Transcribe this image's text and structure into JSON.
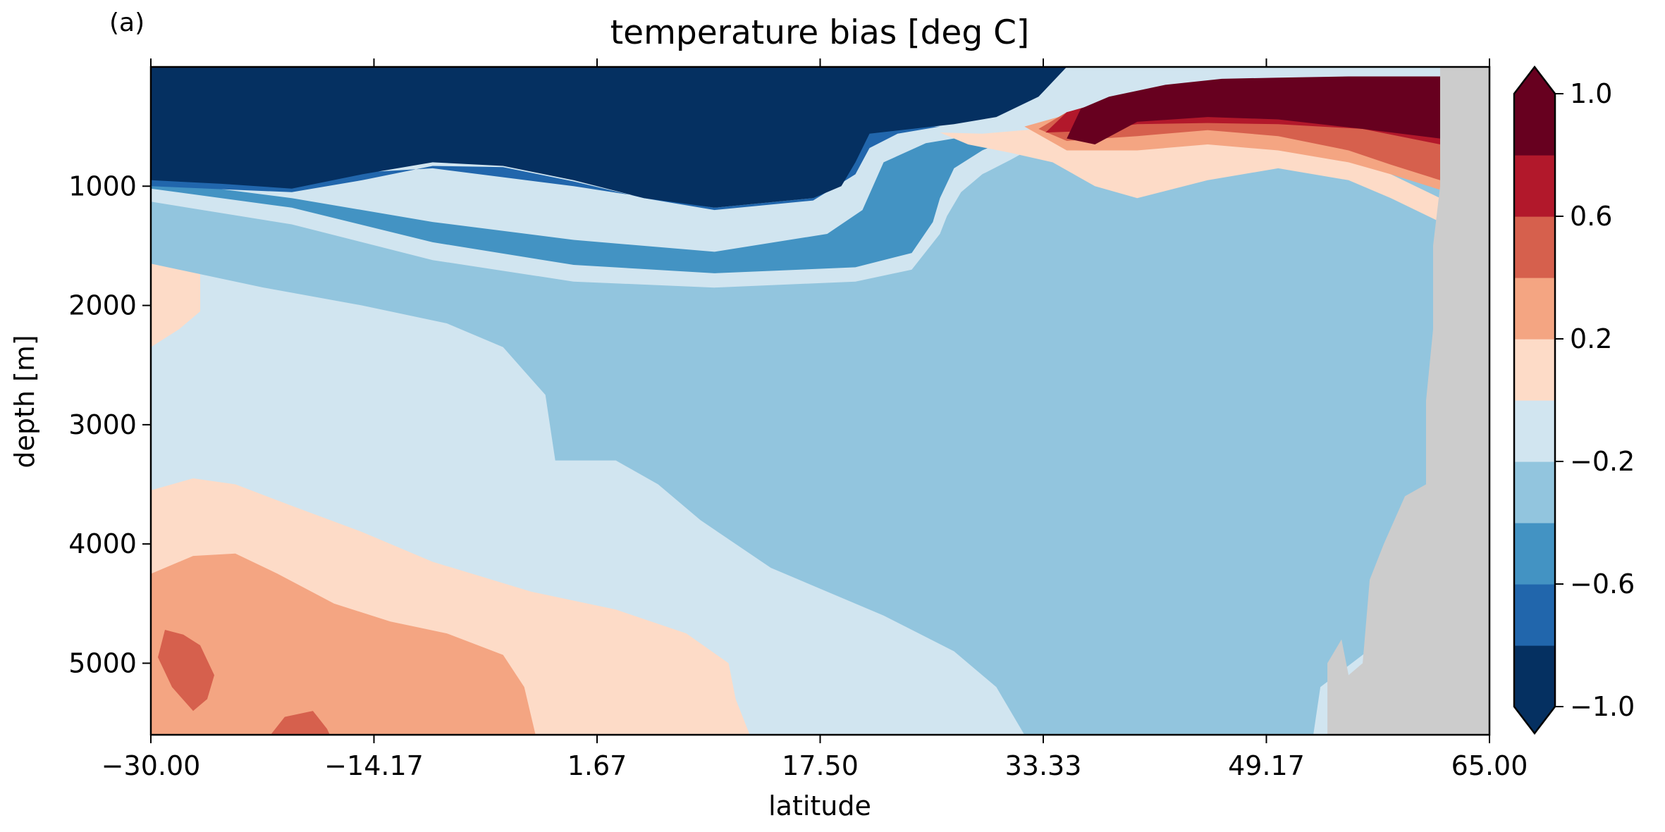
{
  "panel_label": "(a)",
  "chart_data": {
    "type": "heatmap",
    "title": "temperature bias [deg C]",
    "xlabel": "latitude",
    "ylabel": "depth [m]",
    "xlim": [
      -30.0,
      65.0
    ],
    "ylim": [
      5600,
      0
    ],
    "x_ticks": [
      "−30.00",
      "−14.17",
      "1.67",
      "17.50",
      "33.33",
      "49.17",
      "65.00"
    ],
    "y_ticks": [
      1000,
      2000,
      3000,
      4000,
      5000
    ],
    "colorbar": {
      "extend": "both",
      "levels": [
        -1.0,
        -0.8,
        -0.6,
        -0.4,
        -0.2,
        0.0,
        0.2,
        0.4,
        0.6,
        0.8,
        1.0
      ],
      "tick_values": [
        -1.0,
        -0.6,
        -0.2,
        0.2,
        0.6,
        1.0
      ],
      "tick_labels": [
        "−1.0",
        "−0.6",
        "−0.2",
        "0.2",
        "0.6",
        "1.0"
      ],
      "colors": [
        "#053061",
        "#2166ac",
        "#4393c3",
        "#92c5de",
        "#d1e5f0",
        "#fddbc7",
        "#f4a582",
        "#d6604d",
        "#b2182b",
        "#67001f"
      ]
    },
    "land_color": "#cccccc",
    "regions": [
      {
        "name": "deep-south-warm-0.2",
        "value_range": [
          0.0,
          0.2
        ],
        "polygon": [
          [
            -30,
            3550
          ],
          [
            -27,
            3450
          ],
          [
            -24,
            3500
          ],
          [
            -20,
            3680
          ],
          [
            -15,
            3900
          ],
          [
            -10,
            4150
          ],
          [
            -3,
            4400
          ],
          [
            3,
            4550
          ],
          [
            8,
            4750
          ],
          [
            11,
            5000
          ],
          [
            11.5,
            5300
          ],
          [
            12.5,
            5600
          ],
          [
            -30,
            5600
          ]
        ]
      },
      {
        "name": "deep-south-warm-0.4",
        "value_range": [
          0.2,
          0.4
        ],
        "polygon": [
          [
            -30,
            4250
          ],
          [
            -27,
            4100
          ],
          [
            -24,
            4080
          ],
          [
            -21,
            4250
          ],
          [
            -17,
            4500
          ],
          [
            -13,
            4650
          ],
          [
            -9,
            4750
          ],
          [
            -5,
            4930
          ],
          [
            -3.5,
            5200
          ],
          [
            -2.7,
            5600
          ],
          [
            -30,
            5600
          ]
        ]
      },
      {
        "name": "deep-south-warm-0.6",
        "value_range": [
          0.4,
          0.6
        ],
        "polygon": [
          [
            -29.5,
            4950
          ],
          [
            -29,
            4720
          ],
          [
            -27.7,
            4760
          ],
          [
            -26.5,
            4850
          ],
          [
            -25.5,
            5100
          ],
          [
            -26,
            5300
          ],
          [
            -27,
            5400
          ],
          [
            -28.5,
            5200
          ]
        ]
      },
      {
        "name": "bottom-warm-0.6",
        "value_range": [
          0.4,
          0.6
        ],
        "polygon": [
          [
            -21.5,
            5600
          ],
          [
            -20.5,
            5450
          ],
          [
            -18.5,
            5400
          ],
          [
            -17.5,
            5550
          ],
          [
            -17.3,
            5600
          ]
        ]
      },
      {
        "name": "south-intermediate-warm",
        "value_range": [
          0.0,
          0.2
        ],
        "polygon": [
          [
            -30,
            1420
          ],
          [
            -26.5,
            1500
          ],
          [
            -26.5,
            2050
          ],
          [
            -28,
            2200
          ],
          [
            -30,
            2350
          ]
        ]
      },
      {
        "name": "upper-cold-0.4",
        "value_range": [
          -0.4,
          -0.2
        ],
        "polygon": [
          [
            -30,
            1130
          ],
          [
            -20,
            1320
          ],
          [
            -10,
            1620
          ],
          [
            0,
            1800
          ],
          [
            10,
            1850
          ],
          [
            20,
            1800
          ],
          [
            24,
            1700
          ],
          [
            26,
            1400
          ],
          [
            26.5,
            1250
          ],
          [
            27.5,
            1050
          ],
          [
            29,
            900
          ],
          [
            31,
            780
          ],
          [
            33,
            650
          ],
          [
            45,
            600
          ],
          [
            53,
            620
          ],
          [
            60,
            750
          ],
          [
            62,
            1050
          ],
          [
            62.5,
            1500
          ],
          [
            63,
            2100
          ],
          [
            63,
            3600
          ],
          [
            61,
            3900
          ],
          [
            59,
            4400
          ],
          [
            58,
            4750
          ],
          [
            53,
            5200
          ],
          [
            52.5,
            5600
          ],
          [
            32,
            5600
          ],
          [
            30,
            5200
          ],
          [
            27,
            4900
          ],
          [
            22,
            4600
          ],
          [
            14,
            4200
          ],
          [
            9,
            3800
          ],
          [
            6,
            3500
          ],
          [
            3,
            3300
          ],
          [
            -1.3,
            3300
          ],
          [
            -2,
            2750
          ],
          [
            -3.5,
            2550
          ],
          [
            -5,
            2350
          ],
          [
            -9,
            2150
          ],
          [
            -15,
            2000
          ],
          [
            -22,
            1850
          ],
          [
            -30,
            1650
          ]
        ]
      },
      {
        "name": "upper-cold-0.6",
        "value_range": [
          -0.6,
          -0.4
        ],
        "polygon": [
          [
            -30,
            1020
          ],
          [
            -20,
            1180
          ],
          [
            -10,
            1470
          ],
          [
            0,
            1660
          ],
          [
            10,
            1730
          ],
          [
            20,
            1680
          ],
          [
            24,
            1560
          ],
          [
            25.5,
            1300
          ],
          [
            26,
            1100
          ],
          [
            27,
            850
          ],
          [
            29,
            700
          ],
          [
            31,
            600
          ],
          [
            28,
            580
          ],
          [
            25,
            640
          ],
          [
            22,
            800
          ],
          [
            20.5,
            1200
          ],
          [
            18,
            1400
          ],
          [
            10,
            1550
          ],
          [
            0,
            1450
          ],
          [
            -10,
            1300
          ],
          [
            -20,
            1100
          ],
          [
            -30,
            950
          ]
        ]
      },
      {
        "name": "upper-cold-0.8",
        "value_range": [
          -0.8,
          -0.6
        ],
        "polygon": [
          [
            -30,
            1000
          ],
          [
            -20,
            1050
          ],
          [
            -15,
            950
          ],
          [
            -10,
            830
          ],
          [
            -5,
            840
          ],
          [
            0,
            960
          ],
          [
            5,
            1100
          ],
          [
            10,
            1200
          ],
          [
            17,
            1120
          ],
          [
            20,
            900
          ],
          [
            21,
            680
          ],
          [
            23,
            560
          ],
          [
            26,
            500
          ],
          [
            21,
            500
          ],
          [
            20,
            700
          ],
          [
            19,
            900
          ],
          [
            17,
            1100
          ],
          [
            10,
            1180
          ],
          [
            0,
            1000
          ],
          [
            -10,
            850
          ],
          [
            -20,
            920
          ],
          [
            -30,
            950
          ]
        ]
      },
      {
        "name": "upper-cold-1.0",
        "value_range": [
          -1.0,
          -0.8
        ],
        "polygon": [
          [
            -30,
            0
          ],
          [
            35,
            0
          ],
          [
            33,
            250
          ],
          [
            30,
            420
          ],
          [
            27,
            480
          ],
          [
            24,
            520
          ],
          [
            21,
            560
          ],
          [
            20,
            800
          ],
          [
            19,
            1000
          ],
          [
            17,
            1100
          ],
          [
            10,
            1180
          ],
          [
            5,
            1100
          ],
          [
            0,
            950
          ],
          [
            -5,
            830
          ],
          [
            -10,
            800
          ],
          [
            -15,
            900
          ],
          [
            -20,
            1020
          ],
          [
            -25,
            980
          ],
          [
            -30,
            950
          ]
        ]
      },
      {
        "name": "upper-warm-0.2",
        "value_range": [
          0.0,
          0.2
        ],
        "polygon": [
          [
            26,
            550
          ],
          [
            29,
            560
          ],
          [
            33,
            520
          ],
          [
            37,
            480
          ],
          [
            41,
            520
          ],
          [
            45,
            560
          ],
          [
            50,
            650
          ],
          [
            55,
            750
          ],
          [
            58,
            900
          ],
          [
            61.5,
            1100
          ],
          [
            61.5,
            1300
          ],
          [
            58,
            1100
          ],
          [
            55,
            950
          ],
          [
            50,
            850
          ],
          [
            45,
            950
          ],
          [
            40,
            1100
          ],
          [
            37,
            1000
          ],
          [
            34,
            800
          ],
          [
            31,
            720
          ],
          [
            28,
            650
          ]
        ]
      },
      {
        "name": "upper-warm-0.4",
        "value_range": [
          0.2,
          0.4
        ],
        "polygon": [
          [
            32,
            500
          ],
          [
            35,
            400
          ],
          [
            40,
            350
          ],
          [
            45,
            350
          ],
          [
            52,
            380
          ],
          [
            56,
            420
          ],
          [
            61.5,
            500
          ],
          [
            61.5,
            1030
          ],
          [
            58,
            900
          ],
          [
            55,
            800
          ],
          [
            50,
            700
          ],
          [
            45,
            650
          ],
          [
            40,
            700
          ],
          [
            35,
            700
          ]
        ]
      },
      {
        "name": "upper-warm-0.6",
        "value_range": [
          0.4,
          0.6
        ],
        "polygon": [
          [
            33,
            520
          ],
          [
            35,
            380
          ],
          [
            40,
            300
          ],
          [
            45,
            250
          ],
          [
            52,
            260
          ],
          [
            56,
            300
          ],
          [
            61.5,
            350
          ],
          [
            61.5,
            950
          ],
          [
            58,
            820
          ],
          [
            55,
            700
          ],
          [
            50,
            580
          ],
          [
            45,
            530
          ],
          [
            40,
            580
          ],
          [
            35,
            620
          ]
        ]
      },
      {
        "name": "upper-warm-0.8",
        "value_range": [
          0.6,
          0.8
        ],
        "polygon": [
          [
            33.5,
            550
          ],
          [
            35,
            380
          ],
          [
            38,
            280
          ],
          [
            42,
            220
          ],
          [
            46,
            200
          ],
          [
            52,
            200
          ],
          [
            56,
            220
          ],
          [
            61.5,
            250
          ],
          [
            61.5,
            650
          ],
          [
            56,
            520
          ],
          [
            50,
            480
          ],
          [
            45,
            470
          ],
          [
            40,
            480
          ],
          [
            36,
            540
          ]
        ]
      },
      {
        "name": "upper-warm-1.0",
        "value_range": [
          0.8,
          1.0
        ],
        "polygon": [
          [
            35,
            600
          ],
          [
            36,
            350
          ],
          [
            38,
            250
          ],
          [
            42,
            150
          ],
          [
            46,
            100
          ],
          [
            50,
            90
          ],
          [
            55,
            80
          ],
          [
            61.5,
            80
          ],
          [
            61.5,
            600
          ],
          [
            56,
            520
          ],
          [
            50,
            440
          ],
          [
            45,
            420
          ],
          [
            40,
            460
          ],
          [
            37,
            650
          ]
        ]
      },
      {
        "name": "land",
        "value_range": null,
        "polygon": [
          [
            61.5,
            0
          ],
          [
            65,
            0
          ],
          [
            65,
            5600
          ],
          [
            53.5,
            5600
          ],
          [
            53.5,
            5000
          ],
          [
            54.5,
            4800
          ],
          [
            55,
            5100
          ],
          [
            56,
            5000
          ],
          [
            56.5,
            4300
          ],
          [
            57.5,
            4000
          ],
          [
            59,
            3600
          ],
          [
            60.5,
            3500
          ],
          [
            60.5,
            2800
          ],
          [
            61,
            2200
          ],
          [
            61,
            1500
          ],
          [
            61.5,
            1000
          ]
        ]
      }
    ]
  }
}
